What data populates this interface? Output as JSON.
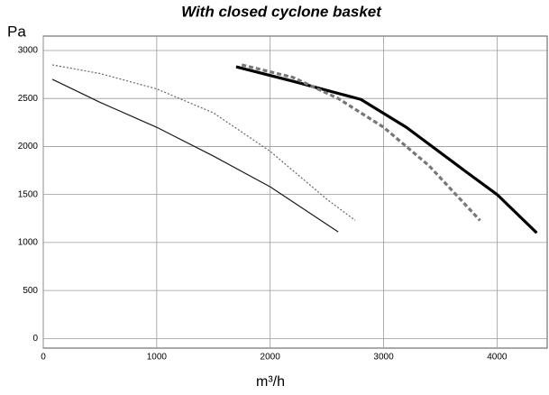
{
  "chart_data": {
    "type": "line",
    "title": "With closed cyclone basket",
    "ylabel": "Pa",
    "xlabel": "m³/h",
    "xlim": [
      0,
      4450
    ],
    "ylim": [
      -100,
      3150
    ],
    "xticks": [
      0,
      1000,
      2000,
      3000,
      4000
    ],
    "yticks": [
      0,
      500,
      1000,
      1500,
      2000,
      2500,
      3000
    ],
    "grid": true,
    "series": [
      {
        "color": "#1a1a1a",
        "style": "solid",
        "width": 1.2,
        "x": [
          80,
          500,
          1000,
          1500,
          2000,
          2600
        ],
        "values": [
          2700,
          2460,
          2200,
          1900,
          1580,
          1110
        ]
      },
      {
        "color": "#666666",
        "style": "dotted",
        "width": 1.2,
        "x": [
          80,
          500,
          1000,
          1500,
          2000,
          2500,
          2750
        ],
        "values": [
          2850,
          2760,
          2600,
          2350,
          1950,
          1450,
          1230
        ]
      },
      {
        "color": "#000000",
        "style": "solid",
        "width": 3.2,
        "x": [
          1700,
          2200,
          2800,
          3200,
          3700,
          4000,
          4350
        ],
        "values": [
          2830,
          2680,
          2490,
          2200,
          1760,
          1500,
          1100
        ]
      },
      {
        "color": "#777777",
        "style": "dashed",
        "width": 3.2,
        "x": [
          1750,
          2200,
          2600,
          3000,
          3400,
          3850
        ],
        "values": [
          2850,
          2720,
          2500,
          2200,
          1800,
          1230
        ]
      }
    ]
  }
}
